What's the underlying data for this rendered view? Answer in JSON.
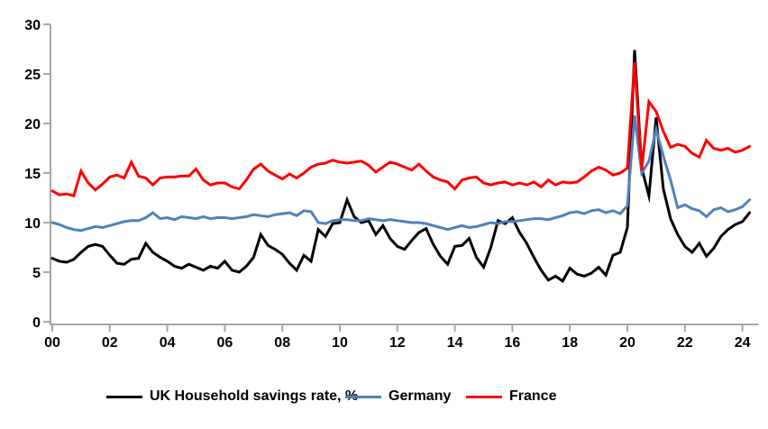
{
  "chart_data": {
    "type": "line",
    "title": "",
    "frequency": "quarterly",
    "x_start": 2000,
    "x_step": 0.25,
    "grid": false,
    "legend_position": "bottom",
    "axis_color": "#a6a6a6",
    "x_axis": {
      "tick_labels": [
        "00",
        "02",
        "04",
        "06",
        "08",
        "10",
        "12",
        "14",
        "16",
        "18",
        "20",
        "22",
        "24"
      ],
      "tick_years": [
        2000,
        2002,
        2004,
        2006,
        2008,
        2010,
        2012,
        2014,
        2016,
        2018,
        2020,
        2022,
        2024
      ],
      "range": [
        2000,
        2024.5
      ]
    },
    "y_axis": {
      "tick_labels": [
        "0",
        "5",
        "10",
        "15",
        "20",
        "25",
        "30"
      ],
      "ticks": [
        0,
        5,
        10,
        15,
        20,
        25,
        30
      ],
      "range": [
        0,
        30
      ]
    },
    "series": [
      {
        "name": "UK Household savings rate, %",
        "color": "#000000",
        "values": [
          6.4,
          6.1,
          6.0,
          6.3,
          7.0,
          7.6,
          7.8,
          7.6,
          6.7,
          5.9,
          5.8,
          6.3,
          6.4,
          7.9,
          7.0,
          6.5,
          6.1,
          5.6,
          5.4,
          5.8,
          5.5,
          5.2,
          5.6,
          5.4,
          6.1,
          5.2,
          5.0,
          5.6,
          6.5,
          8.8,
          7.7,
          7.3,
          6.8,
          5.9,
          5.2,
          6.7,
          6.1,
          9.3,
          8.6,
          9.9,
          10.0,
          12.3,
          10.6,
          10.0,
          10.2,
          8.8,
          9.7,
          8.4,
          7.6,
          7.3,
          8.2,
          9.0,
          9.4,
          7.8,
          6.6,
          5.8,
          7.6,
          7.7,
          8.4,
          6.5,
          5.5,
          7.5,
          10.2,
          9.9,
          10.5,
          9.0,
          7.9,
          6.5,
          5.2,
          4.2,
          4.6,
          4.1,
          5.4,
          4.8,
          4.6,
          4.9,
          5.5,
          4.7,
          6.7,
          7.0,
          9.5,
          27.4,
          15.5,
          12.7,
          20.6,
          13.4,
          10.4,
          8.8,
          7.6,
          7.0,
          7.9,
          6.6,
          7.4,
          8.6,
          9.3,
          9.8,
          10.1,
          11.0
        ]
      },
      {
        "name": "Germany",
        "color": "#4f81bd",
        "values": [
          10.0,
          9.8,
          9.5,
          9.3,
          9.2,
          9.4,
          9.6,
          9.5,
          9.7,
          9.9,
          10.1,
          10.2,
          10.2,
          10.5,
          11.0,
          10.4,
          10.5,
          10.3,
          10.6,
          10.5,
          10.4,
          10.6,
          10.4,
          10.5,
          10.5,
          10.4,
          10.5,
          10.6,
          10.8,
          10.7,
          10.6,
          10.8,
          10.9,
          11.0,
          10.7,
          11.2,
          11.1,
          10.0,
          9.9,
          10.2,
          10.3,
          10.3,
          10.2,
          10.2,
          10.4,
          10.3,
          10.2,
          10.3,
          10.2,
          10.1,
          10.0,
          10.0,
          9.9,
          9.7,
          9.5,
          9.3,
          9.5,
          9.7,
          9.5,
          9.6,
          9.8,
          10.0,
          9.9,
          10.1,
          10.1,
          10.2,
          10.3,
          10.4,
          10.4,
          10.3,
          10.5,
          10.7,
          11.0,
          11.1,
          10.9,
          11.2,
          11.3,
          11.0,
          11.2,
          10.9,
          11.7,
          20.8,
          15.0,
          16.2,
          19.4,
          16.7,
          14.3,
          11.5,
          11.8,
          11.4,
          11.2,
          10.6,
          11.3,
          11.5,
          11.1,
          11.3,
          11.6,
          12.3
        ]
      },
      {
        "name": "France",
        "color": "#ff0000",
        "values": [
          13.2,
          12.8,
          12.9,
          12.7,
          15.2,
          14.0,
          13.3,
          13.9,
          14.6,
          14.8,
          14.5,
          16.1,
          14.7,
          14.5,
          13.8,
          14.5,
          14.6,
          14.6,
          14.7,
          14.7,
          15.4,
          14.3,
          13.8,
          14.0,
          14.0,
          13.6,
          13.4,
          14.3,
          15.4,
          15.9,
          15.2,
          14.8,
          14.4,
          14.9,
          14.5,
          15.0,
          15.6,
          15.9,
          16.0,
          16.3,
          16.1,
          16.0,
          16.1,
          16.2,
          15.8,
          15.1,
          15.6,
          16.1,
          15.9,
          15.6,
          15.3,
          15.9,
          15.2,
          14.6,
          14.3,
          14.1,
          13.4,
          14.3,
          14.5,
          14.6,
          14.0,
          13.8,
          14.0,
          14.1,
          13.8,
          14.0,
          13.8,
          14.1,
          13.6,
          14.3,
          13.8,
          14.1,
          14.0,
          14.1,
          14.6,
          15.2,
          15.6,
          15.3,
          14.8,
          15.0,
          15.5,
          26.2,
          15.3,
          22.2,
          21.2,
          19.2,
          17.6,
          17.9,
          17.7,
          17.0,
          16.6,
          18.3,
          17.5,
          17.3,
          17.5,
          17.1,
          17.3,
          17.7
        ]
      }
    ]
  }
}
